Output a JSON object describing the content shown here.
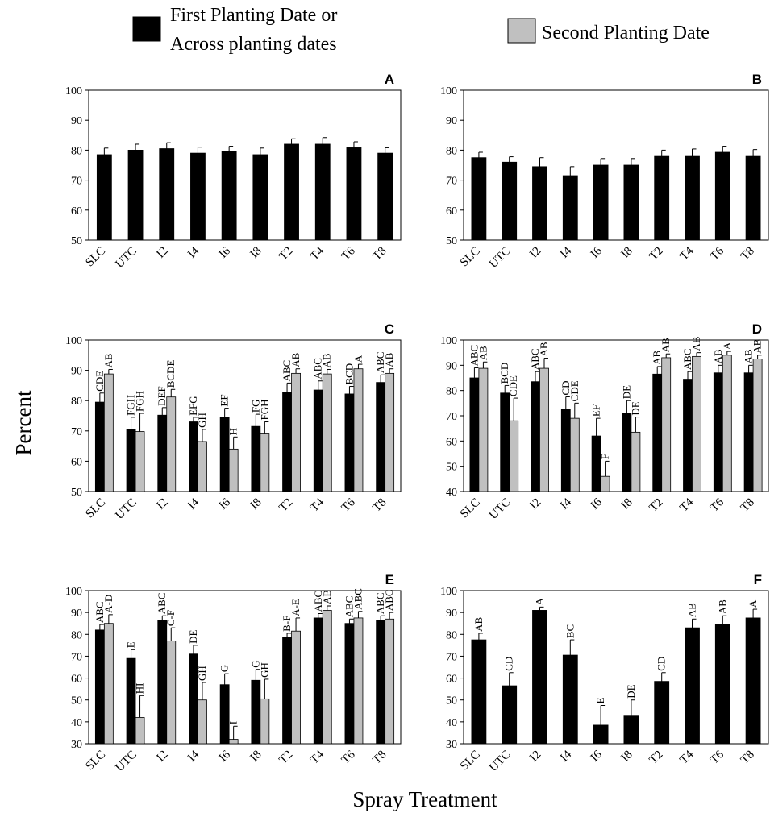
{
  "legend": {
    "first_line1": "First Planting Date or",
    "first_line2": "Across planting dates",
    "second": "Second Planting Date",
    "colors": {
      "first": "#000000",
      "second": "#c0c0c0"
    }
  },
  "ylabel": "Percent",
  "xlabel": "Spray Treatment",
  "chart_data": [
    {
      "panel": "A",
      "type": "bar",
      "ylim": [
        50,
        100
      ],
      "yticks": [
        50,
        60,
        70,
        80,
        90,
        100
      ],
      "categories": [
        "SLC",
        "UTC",
        "I2",
        "I4",
        "I6",
        "I8",
        "T2",
        "T4",
        "T6",
        "T8"
      ],
      "series": [
        {
          "values": [
            78.5,
            80,
            80.5,
            79,
            79.5,
            78.5,
            82,
            82,
            80.8,
            79
          ],
          "errors": [
            2.2,
            2,
            2,
            2,
            1.8,
            2.2,
            1.8,
            2.2,
            2,
            1.8
          ]
        }
      ]
    },
    {
      "panel": "B",
      "type": "bar",
      "ylim": [
        50,
        100
      ],
      "yticks": [
        50,
        60,
        70,
        80,
        90,
        100
      ],
      "categories": [
        "SLC",
        "UTC",
        "I2",
        "I4",
        "I6",
        "I8",
        "T2",
        "T4",
        "T6",
        "T8"
      ],
      "series": [
        {
          "values": [
            77.5,
            76,
            74.5,
            71.5,
            75,
            75,
            78.2,
            78.2,
            79.3,
            78.2
          ],
          "errors": [
            1.8,
            1.8,
            3,
            3,
            2.2,
            2.2,
            1.8,
            2.2,
            2,
            2
          ]
        }
      ]
    },
    {
      "panel": "C",
      "type": "bar",
      "ylim": [
        50,
        100
      ],
      "yticks": [
        50,
        60,
        70,
        80,
        90,
        100
      ],
      "categories": [
        "SLC",
        "UTC",
        "I2",
        "I4",
        "I6",
        "I8",
        "T2",
        "T4",
        "T6",
        "T8"
      ],
      "series": [
        {
          "values": [
            79.5,
            70.5,
            75.2,
            73,
            74.5,
            71.5,
            82.8,
            83.5,
            82.2,
            86
          ],
          "errors": [
            3,
            4,
            2.5,
            1.5,
            3,
            4,
            3,
            3,
            2.5,
            2.5
          ],
          "labels": [
            "CDE",
            "FGH",
            "DEF",
            "EFG",
            "EF",
            "FG",
            "ABC",
            "ABC",
            "BCD",
            "ABC"
          ]
        },
        {
          "values": [
            88.8,
            69.8,
            81.2,
            66.5,
            64,
            69,
            89,
            88.8,
            90.5,
            89
          ],
          "errors": [
            1.5,
            6,
            2.5,
            4,
            4,
            4,
            1.5,
            1.5,
            1.5,
            1.5
          ],
          "labels": [
            "AB",
            "FGH",
            "BCDE",
            "GH",
            "H",
            "FGH",
            "AB",
            "AB",
            "A",
            "AB"
          ]
        }
      ]
    },
    {
      "panel": "D",
      "type": "bar",
      "ylim": [
        40,
        100
      ],
      "yticks": [
        40,
        50,
        60,
        70,
        80,
        90,
        100
      ],
      "categories": [
        "SLC",
        "UTC",
        "I2",
        "I4",
        "I6",
        "I8",
        "T2",
        "T4",
        "T6",
        "T8"
      ],
      "series": [
        {
          "values": [
            85,
            79,
            83.5,
            72.5,
            62,
            71,
            86.5,
            84.5,
            87,
            87
          ],
          "errors": [
            4,
            3,
            4,
            5,
            7,
            5,
            3,
            3,
            3,
            3
          ],
          "labels": [
            "ABC",
            "BCD",
            "ABC",
            "CD",
            "EF",
            "DE",
            "AB",
            "ABC",
            "AB",
            "AB"
          ]
        },
        {
          "values": [
            88.8,
            68,
            88.8,
            69,
            46,
            63.5,
            93,
            93.5,
            94,
            92.5
          ],
          "errors": [
            2.5,
            9,
            4,
            6,
            6,
            6,
            1.5,
            1.5,
            1.5,
            1.5
          ],
          "labels": [
            "AB",
            "CDE",
            "AB",
            "CDE",
            "F",
            "DE",
            "AB",
            "AB",
            "A",
            "AB"
          ]
        }
      ]
    },
    {
      "panel": "E",
      "type": "bar",
      "ylim": [
        30,
        100
      ],
      "yticks": [
        30,
        40,
        50,
        60,
        70,
        80,
        90,
        100
      ],
      "categories": [
        "SLC",
        "UTC",
        "I2",
        "I4",
        "I6",
        "I8",
        "T2",
        "T4",
        "T6",
        "T8"
      ],
      "series": [
        {
          "values": [
            82,
            69,
            86.5,
            71,
            57,
            59,
            78.5,
            87.5,
            85,
            86.5
          ],
          "errors": [
            2.5,
            4,
            2,
            4,
            5,
            5,
            2,
            2,
            2,
            2
          ],
          "labels": [
            "ABC",
            "E",
            "ABC",
            "DE",
            "G",
            "G",
            "B-F",
            "ABC",
            "ABC",
            "ABC"
          ]
        },
        {
          "values": [
            85,
            42,
            77,
            50,
            32,
            50.5,
            81.5,
            91,
            87.5,
            87
          ],
          "errors": [
            4,
            10,
            6,
            8,
            6,
            9,
            6,
            2,
            3,
            3
          ],
          "labels": [
            "A-D",
            "HI",
            "C-F",
            "GH",
            "I",
            "GH",
            "A-E",
            "AB",
            "ABC",
            "ABC"
          ]
        }
      ]
    },
    {
      "panel": "F",
      "type": "bar",
      "ylim": [
        30,
        100
      ],
      "yticks": [
        30,
        40,
        50,
        60,
        70,
        80,
        90,
        100
      ],
      "categories": [
        "SLC",
        "UTC",
        "I2",
        "I4",
        "I6",
        "I8",
        "T2",
        "T4",
        "T6",
        "T8"
      ],
      "series": [
        {
          "values": [
            77.5,
            56.5,
            91,
            70.5,
            38.5,
            43,
            58.5,
            83,
            84.5,
            87.5
          ],
          "errors": [
            3,
            6,
            1.5,
            7,
            9,
            7,
            4,
            4,
            4,
            4
          ],
          "labels": [
            "AB",
            "CD",
            "A",
            "BC",
            "E",
            "DE",
            "CD",
            "AB",
            "AB",
            "A"
          ]
        }
      ]
    }
  ]
}
